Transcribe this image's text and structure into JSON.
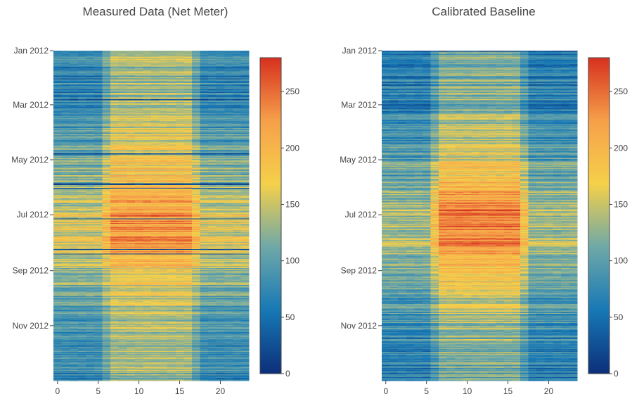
{
  "chart_data": [
    {
      "type": "heatmap",
      "title": "Measured Data (Net Meter)",
      "xlabel": "",
      "ylabel": "",
      "x_range": [
        0,
        23
      ],
      "x_ticks": [
        "0",
        "5",
        "10",
        "15",
        "20"
      ],
      "y_range": [
        "2012-01-01",
        "2012-12-31"
      ],
      "y_ticks": [
        "Jan 2012",
        "Mar 2012",
        "May 2012",
        "Jul 2012",
        "Sep 2012",
        "Nov 2012"
      ],
      "colorbar": {
        "range": [
          0,
          280
        ],
        "ticks": [
          "0",
          "50",
          "100",
          "150",
          "200",
          "250"
        ]
      },
      "colorscale": [
        "#0d2f7a",
        "#1778b5",
        "#6ea8a8",
        "#f5d04a",
        "#f6a04a",
        "#d7301f"
      ],
      "seasonal_profile": {
        "dates": [
          "2012-01-01",
          "2012-03-01",
          "2012-05-01",
          "2012-07-01",
          "2012-08-01",
          "2012-09-01",
          "2012-11-01",
          "2012-12-31"
        ],
        "night_level": [
          65,
          75,
          105,
          155,
          160,
          130,
          85,
          70
        ],
        "day_level": [
          125,
          140,
          165,
          225,
          225,
          175,
          135,
          125
        ]
      },
      "dark_rows": [
        "2012-02-24",
        "2012-04-24",
        "2012-05-27",
        "2012-05-28",
        "2012-06-01",
        "2012-07-05",
        "2012-08-08",
        "2012-08-13"
      ]
    },
    {
      "type": "heatmap",
      "title": "Calibrated Baseline",
      "xlabel": "",
      "ylabel": "",
      "x_range": [
        0,
        23
      ],
      "x_ticks": [
        "0",
        "5",
        "10",
        "15",
        "20"
      ],
      "y_range": [
        "2012-01-01",
        "2012-12-31"
      ],
      "y_ticks": [
        "Jan 2012",
        "Mar 2012",
        "May 2012",
        "Jul 2012",
        "Sep 2012",
        "Nov 2012"
      ],
      "colorbar": {
        "range": [
          0,
          280
        ],
        "ticks": [
          "0",
          "50",
          "100",
          "150",
          "200",
          "250"
        ]
      },
      "colorscale": [
        "#0d2f7a",
        "#1778b5",
        "#6ea8a8",
        "#f5d04a",
        "#f6a04a",
        "#d7301f"
      ],
      "seasonal_profile": {
        "dates": [
          "2012-01-01",
          "2012-03-01",
          "2012-05-01",
          "2012-07-01",
          "2012-08-01",
          "2012-09-01",
          "2012-11-01",
          "2012-12-31"
        ],
        "night_level": [
          60,
          70,
          95,
          135,
          140,
          115,
          80,
          65
        ],
        "day_level": [
          115,
          125,
          160,
          245,
          235,
          185,
          130,
          115
        ]
      },
      "dark_rows": [
        "2012-01-01"
      ]
    }
  ]
}
